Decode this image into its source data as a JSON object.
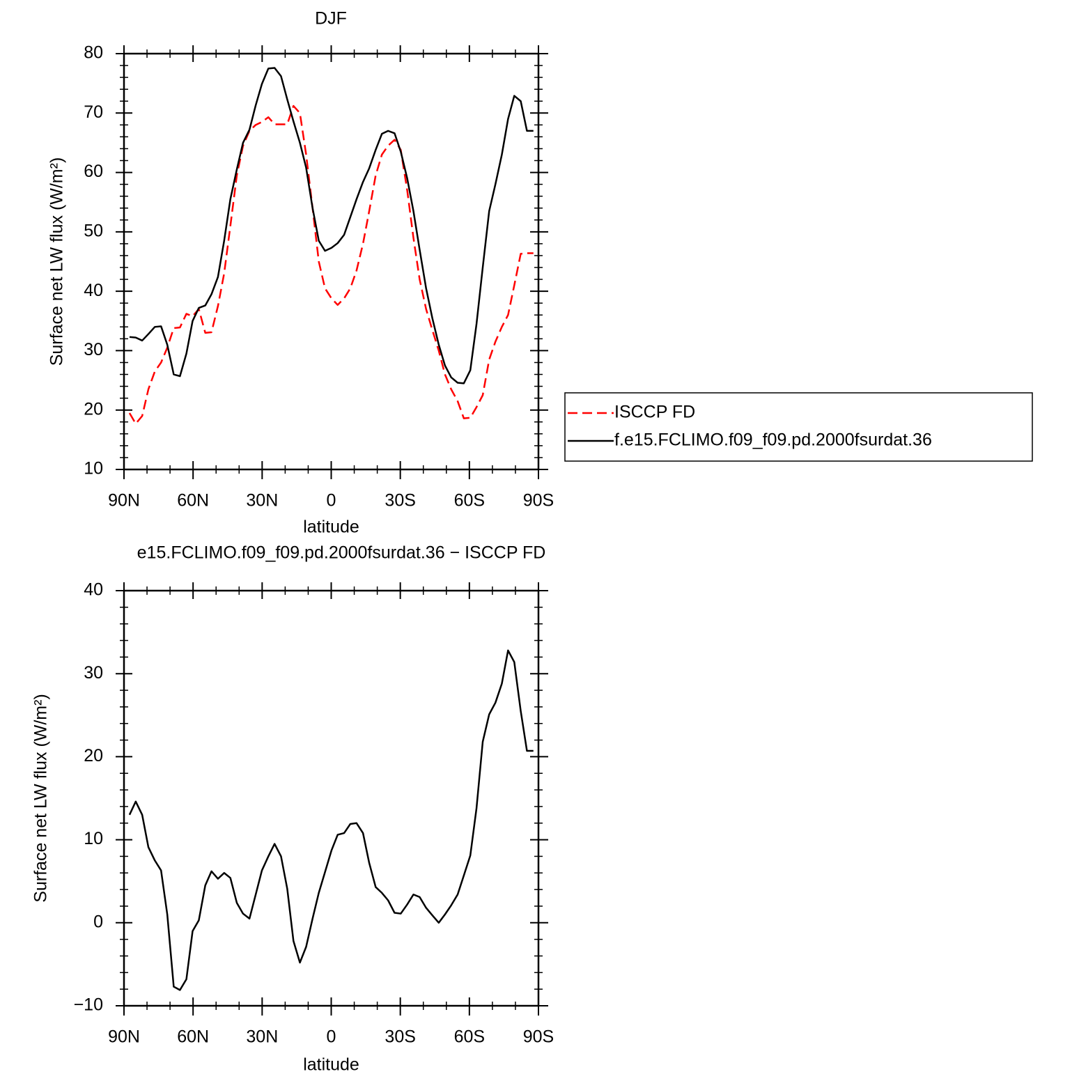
{
  "chart_data": [
    {
      "type": "line",
      "title": "DJF",
      "xlabel": "latitude",
      "ylabel": "Surface net LW flux (W/m²)",
      "xlim": [
        90,
        -90
      ],
      "ylim": [
        10,
        80
      ],
      "xticks": [
        {
          "value": 90,
          "label": "90N"
        },
        {
          "value": 60,
          "label": "60N"
        },
        {
          "value": 30,
          "label": "30N"
        },
        0,
        {
          "value": -30,
          "label": "30S"
        },
        {
          "value": -60,
          "label": "60S"
        },
        {
          "value": -90,
          "label": "90S"
        }
      ],
      "yticks": [
        10,
        20,
        30,
        40,
        50,
        60,
        70,
        80
      ],
      "legend": "right",
      "x": [
        87.6,
        84.9,
        82.1,
        79.4,
        76.6,
        73.9,
        71.2,
        68.4,
        65.7,
        62.9,
        60.2,
        57.5,
        54.7,
        52.0,
        49.2,
        46.5,
        43.8,
        41.0,
        38.3,
        35.5,
        32.8,
        30.1,
        27.3,
        24.6,
        21.8,
        19.1,
        16.4,
        13.6,
        10.9,
        8.1,
        5.4,
        2.7,
        -0.1,
        -2.8,
        -5.6,
        -8.3,
        -11.0,
        -13.8,
        -16.5,
        -19.3,
        -22.0,
        -24.7,
        -27.5,
        -30.2,
        -33.0,
        -35.7,
        -38.4,
        -41.2,
        -43.9,
        -46.7,
        -49.4,
        -52.1,
        -54.9,
        -57.6,
        -60.4,
        -63.1,
        -65.8,
        -68.6,
        -71.3,
        -74.1,
        -76.8,
        -79.5,
        -82.3,
        -85.0,
        -87.8
      ],
      "series": [
        {
          "name": "ISCCP FD",
          "color": "#ff0000",
          "linestyle": "dashed",
          "values": [
            19.5,
            17.7,
            19,
            23.5,
            26.5,
            28,
            30.5,
            33.8,
            33.9,
            36.2,
            35.8,
            37,
            33,
            33.1,
            37.5,
            43,
            51,
            59.5,
            64.5,
            67,
            68,
            68.5,
            69.3,
            68.1,
            68.1,
            68.1,
            71.2,
            70,
            63,
            54,
            45,
            40.5,
            38.8,
            37.7,
            38.8,
            40.5,
            43.5,
            48,
            53.5,
            59.5,
            63,
            64.5,
            65.5,
            63.8,
            57,
            49,
            42,
            37,
            33.5,
            30,
            26,
            23.5,
            21.5,
            18.6,
            18.7,
            20.5,
            22.5,
            28.5,
            31.5,
            34,
            36,
            41,
            46.3,
            46.4,
            46.4
          ]
        },
        {
          "name": "f.e15.FCLIMO.f09_f09.pd.2000fsurdat.36",
          "color": "#000000",
          "linestyle": "solid",
          "values": [
            32.3,
            32.2,
            31.7,
            32.8,
            34.0,
            34.1,
            31,
            26,
            25.7,
            29.5,
            35,
            37.2,
            37.6,
            39.5,
            42.4,
            48.5,
            55.5,
            60.5,
            65,
            67.2,
            71.3,
            74.9,
            77.5,
            77.6,
            76.2,
            72.3,
            68.6,
            65,
            60.8,
            54,
            48.5,
            46.8,
            47.3,
            48.1,
            49.5,
            52.5,
            55.5,
            58.4,
            60.7,
            63.8,
            66.5,
            67,
            66.6,
            63.5,
            59,
            53.5,
            47,
            40.5,
            35.5,
            31,
            27.5,
            25.5,
            24.6,
            24.5,
            26.7,
            34.5,
            44,
            53.5,
            58,
            63,
            69,
            72.9,
            72,
            67,
            67
          ]
        }
      ]
    },
    {
      "type": "line",
      "title": "e15.FCLIMO.f09_f09.pd.2000fsurdat.36 − ISCCP FD",
      "xlabel": "latitude",
      "ylabel": "Surface net LW flux (W/m²)",
      "xlim": [
        90,
        -90
      ],
      "ylim": [
        -10,
        40
      ],
      "xticks": [
        {
          "value": 90,
          "label": "90N"
        },
        {
          "value": 60,
          "label": "60N"
        },
        {
          "value": 30,
          "label": "30N"
        },
        0,
        {
          "value": -30,
          "label": "30S"
        },
        {
          "value": -60,
          "label": "60S"
        },
        {
          "value": -90,
          "label": "90S"
        }
      ],
      "yticks": [
        {
          "value": -10,
          "label": "−10"
        },
        0,
        10,
        20,
        30,
        40
      ],
      "x": [
        87.6,
        84.9,
        82.1,
        79.4,
        76.6,
        73.9,
        71.2,
        68.4,
        65.7,
        62.9,
        60.2,
        57.5,
        54.7,
        52.0,
        49.2,
        46.5,
        43.8,
        41.0,
        38.3,
        35.5,
        32.8,
        30.1,
        27.3,
        24.6,
        21.8,
        19.1,
        16.4,
        13.6,
        10.9,
        8.1,
        5.4,
        2.7,
        -0.1,
        -2.8,
        -5.6,
        -8.3,
        -11.0,
        -13.8,
        -16.5,
        -19.3,
        -22.0,
        -24.7,
        -27.5,
        -30.2,
        -33.0,
        -35.7,
        -38.4,
        -41.2,
        -43.9,
        -46.7,
        -49.4,
        -52.1,
        -54.9,
        -57.6,
        -60.4,
        -63.1,
        -65.8,
        -68.6,
        -71.3,
        -74.1,
        -76.8,
        -79.5,
        -82.3,
        -85.0,
        -87.8
      ],
      "series": [
        {
          "color": "#000000",
          "linestyle": "solid",
          "values": [
            13,
            14.6,
            13,
            9.1,
            7.5,
            6.3,
            1,
            -7.7,
            -8.1,
            -6.8,
            -1,
            0.3,
            4.5,
            6.2,
            5.3,
            6,
            5.4,
            2.4,
            1.1,
            0.5,
            3.4,
            6.3,
            8,
            9.5,
            8,
            4.1,
            -2.2,
            -4.8,
            -2.9,
            0.5,
            3.6,
            6.1,
            8.7,
            10.6,
            10.8,
            11.9,
            12,
            10.8,
            7.2,
            4.3,
            3.6,
            2.7,
            1.2,
            1.1,
            2.2,
            3.4,
            3.1,
            1.8,
            0.9,
            0,
            1,
            2.1,
            3.4,
            5.7,
            8.1,
            13.8,
            21.8,
            25.1,
            26.5,
            28.8,
            32.8,
            31.4,
            25.5,
            20.7,
            20.7
          ]
        }
      ]
    }
  ]
}
